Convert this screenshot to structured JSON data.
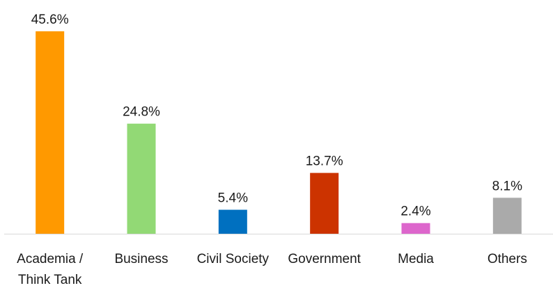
{
  "chart_data": {
    "type": "bar",
    "categories": [
      "Academia /\nThink Tank",
      "Business",
      "Civil Society",
      "Government",
      "Media",
      "Others"
    ],
    "values": [
      45.6,
      24.8,
      5.4,
      13.7,
      2.4,
      8.1
    ],
    "value_labels": [
      "45.6%",
      "24.8%",
      "5.4%",
      "13.7%",
      "2.4%",
      "8.1%"
    ],
    "colors": [
      "#FF9900",
      "#92D975",
      "#0070C0",
      "#CC3300",
      "#DD66CC",
      "#AAAAAA"
    ],
    "unit": "%",
    "ylim": [
      0,
      45.6
    ],
    "grid": false,
    "legend": "none"
  }
}
